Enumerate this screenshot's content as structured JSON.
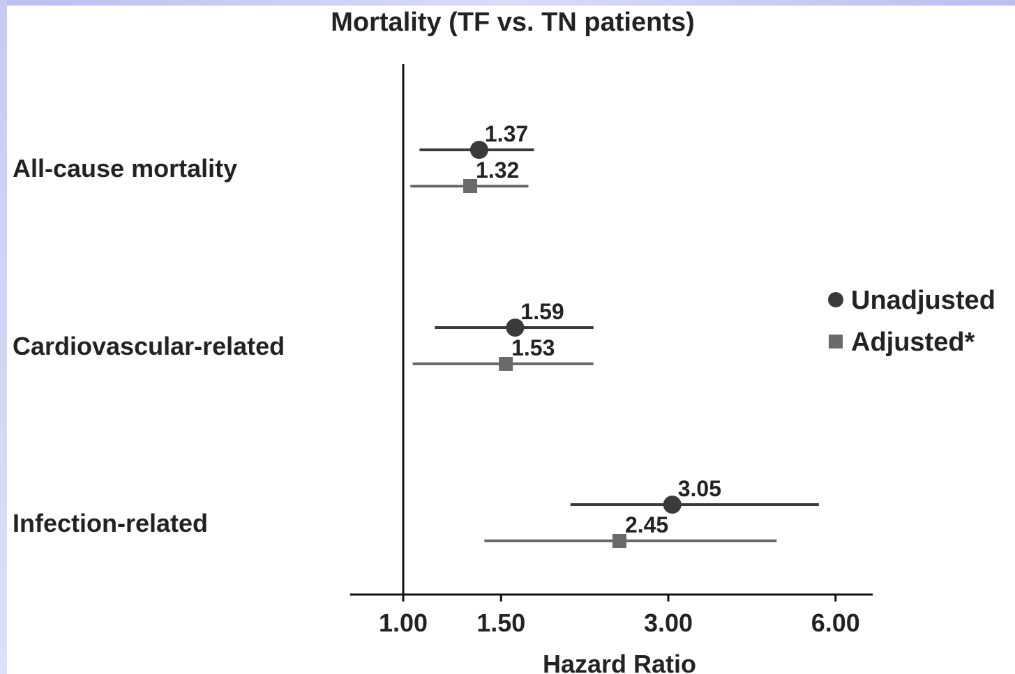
{
  "chart_data": {
    "type": "forest",
    "title": "Mortality (TF vs. TN patients)",
    "xlabel": "Hazard Ratio",
    "xscale": "log",
    "xlim": [
      0.85,
      7.0
    ],
    "xticks": [
      {
        "value": 1.0,
        "label": "1.00"
      },
      {
        "value": 1.5,
        "label": "1.50"
      },
      {
        "value": 3.0,
        "label": "3.00"
      },
      {
        "value": 6.0,
        "label": "6.00"
      }
    ],
    "reference_line": 1.0,
    "categories": [
      "All-cause mortality",
      "Cardiovascular-related",
      "Infection-related"
    ],
    "series": [
      {
        "name": "Unadjusted",
        "marker": "circle",
        "color": "#3a3a3a",
        "points": [
          {
            "hr": 1.37,
            "label": "1.37",
            "lo": 1.07,
            "hi": 1.72
          },
          {
            "hr": 1.59,
            "label": "1.59",
            "lo": 1.14,
            "hi": 2.2
          },
          {
            "hr": 3.05,
            "label": "3.05",
            "lo": 2.0,
            "hi": 5.6
          }
        ]
      },
      {
        "name": "Adjusted*",
        "marker": "square",
        "color": "#6a6a6a",
        "points": [
          {
            "hr": 1.32,
            "label": "1.32",
            "lo": 1.03,
            "hi": 1.68
          },
          {
            "hr": 1.53,
            "label": "1.53",
            "lo": 1.04,
            "hi": 2.2
          },
          {
            "hr": 2.45,
            "label": "2.45",
            "lo": 1.4,
            "hi": 4.7
          }
        ]
      }
    ],
    "legend": {
      "position": "right"
    }
  }
}
